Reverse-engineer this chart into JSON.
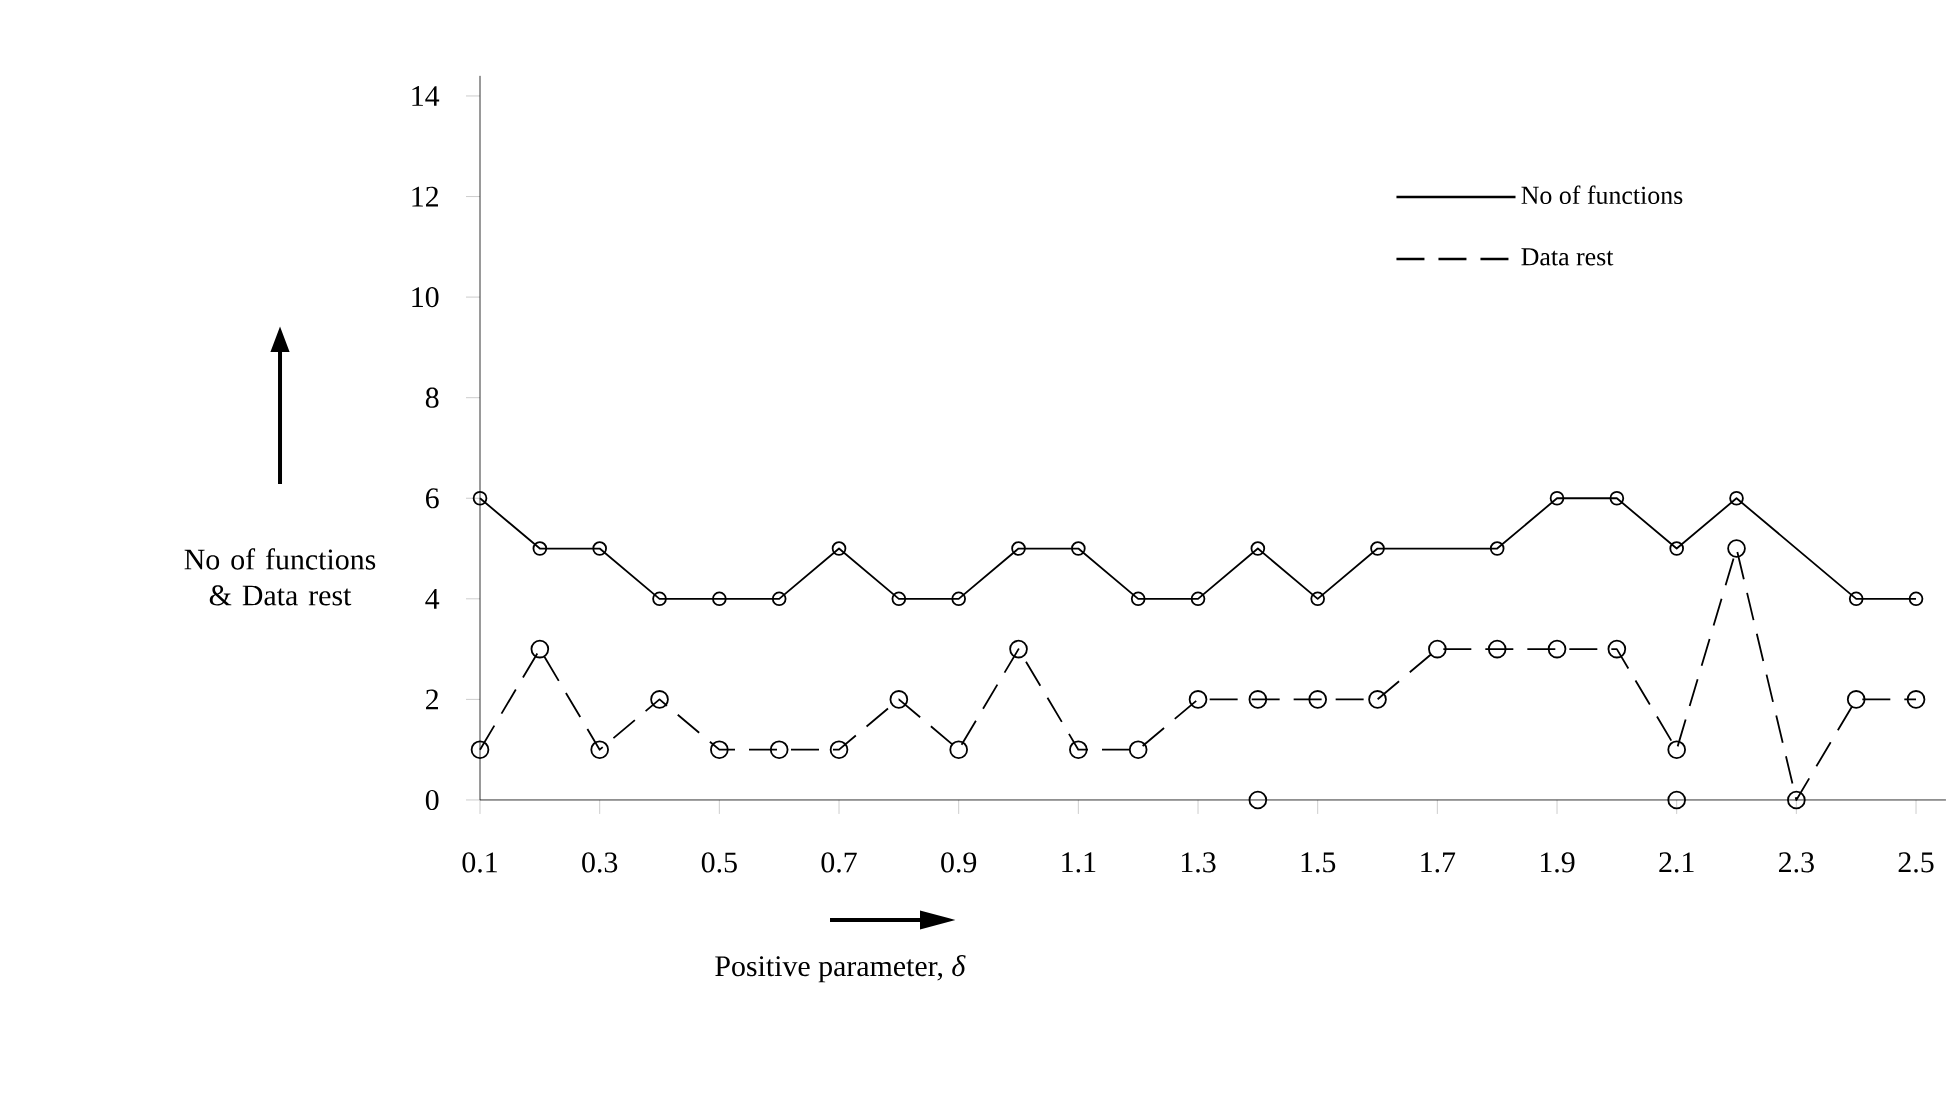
{
  "chart_data": {
    "type": "line",
    "xlabel": "Positive parameter, *δ*",
    "ylabel": "No of functions & Data rest",
    "xlim": [
      0.1,
      2.55
    ],
    "ylim": [
      0,
      14.4
    ],
    "xticks": [
      0.1,
      0.3,
      0.5,
      0.7,
      0.9,
      1.1,
      1.3,
      1.5,
      1.7,
      1.9,
      2.1,
      2.3,
      2.5
    ],
    "yticks": [
      0,
      2,
      4,
      6,
      8,
      10,
      12,
      14
    ],
    "marker": "circle",
    "grid": false,
    "legend": "top right",
    "series": [
      {
        "name": "No of functions",
        "color": "#000000",
        "line_style": "solid",
        "x": [
          0.1,
          0.2,
          0.3,
          0.4,
          0.5,
          0.6,
          0.7,
          0.8,
          0.9,
          1.0,
          1.1,
          1.2,
          1.3,
          1.4,
          1.5,
          1.6,
          1.8,
          1.9,
          2.0,
          2.1,
          2.2,
          2.4,
          2.5
        ],
        "values": [
          6,
          5,
          5,
          4,
          4,
          4,
          5,
          4,
          4,
          5,
          5,
          4,
          4,
          5,
          4,
          5,
          5,
          6,
          6,
          5,
          6,
          4,
          4
        ]
      },
      {
        "name": "Data rest",
        "color": "#000000",
        "line_style": "dashed",
        "x": [
          0.1,
          0.2,
          0.3,
          0.4,
          0.5,
          0.6,
          0.7,
          0.8,
          0.9,
          1.0,
          1.1,
          1.2,
          1.3,
          1.4,
          1.5,
          1.6,
          1.7,
          1.8,
          1.9,
          2.0,
          2.1,
          2.2,
          2.3,
          2.4,
          2.5
        ],
        "values": [
          1,
          3,
          1,
          2,
          1,
          1,
          1,
          2,
          1,
          3,
          1,
          1,
          2,
          2,
          2,
          2,
          3,
          3,
          3,
          3,
          1,
          5,
          0,
          2,
          2
        ]
      },
      {
        "type": "scatter",
        "color": "#000000",
        "x": [
          1.4,
          2.1
        ],
        "values": [
          0,
          0
        ]
      }
    ]
  }
}
